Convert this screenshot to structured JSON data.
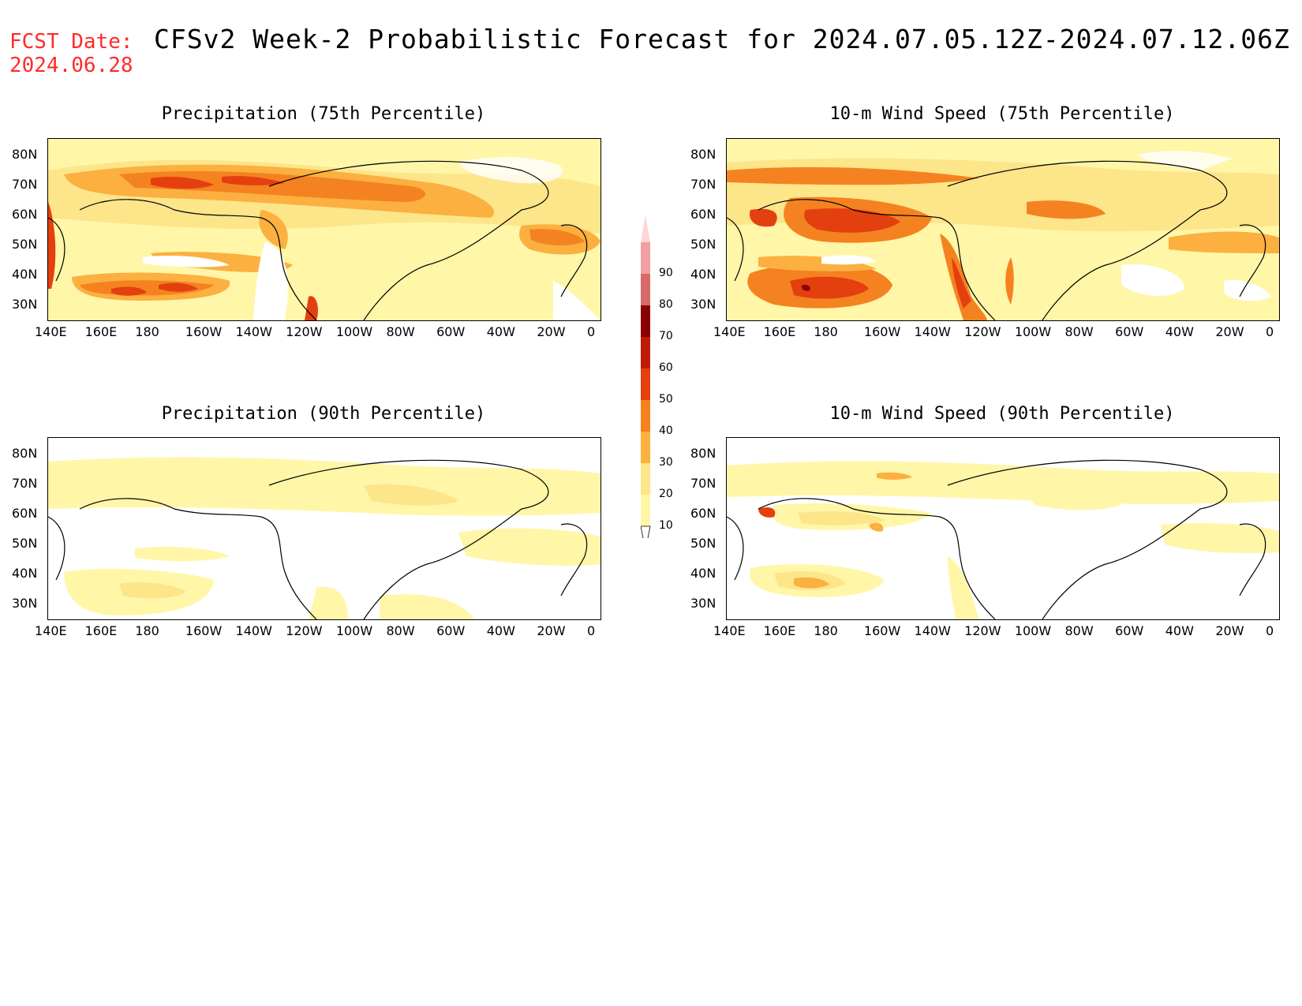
{
  "header": {
    "fcst_label": "FCST Date:",
    "fcst_date": "2024.06.28",
    "title": "CFSv2 Week-2 Probabilistic Forecast for 2024.07.05.12Z-2024.07.12.06Z"
  },
  "panels": [
    {
      "title": "Precipitation (75th Percentile)"
    },
    {
      "title": "10-m Wind Speed (75th Percentile)"
    },
    {
      "title": "Precipitation (90th Percentile)"
    },
    {
      "title": "10-m Wind Speed (90th Percentile)"
    }
  ],
  "lat_labels": [
    "80N",
    "70N",
    "60N",
    "50N",
    "40N",
    "30N"
  ],
  "lon_labels": [
    "140E",
    "160E",
    "180",
    "160W",
    "140W",
    "120W",
    "100W",
    "80W",
    "60W",
    "40W",
    "20W",
    "0"
  ],
  "colorbar": {
    "levels": [
      "10",
      "20",
      "30",
      "40",
      "50",
      "60",
      "70",
      "80",
      "90"
    ],
    "colors": [
      "#fff6a8",
      "#fde58a",
      "#fbb040",
      "#f58220",
      "#e4400f",
      "#c01b06",
      "#8b0000",
      "#d86a6a",
      "#f0a0a0",
      "#ffd6d6"
    ]
  },
  "colors": {
    "fcst_text": "#ff2a2a",
    "base_fill": "#fffbe0"
  }
}
